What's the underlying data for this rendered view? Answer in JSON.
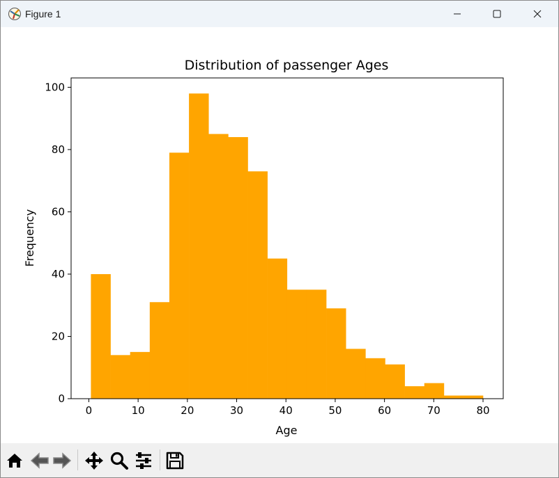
{
  "window": {
    "title": "Figure 1",
    "icons": [
      "figure-app-icon",
      "minimize-icon",
      "maximize-icon",
      "close-icon"
    ]
  },
  "toolbar": {
    "buttons": [
      {
        "name": "home-button",
        "icon": "home-icon"
      },
      {
        "name": "back-button",
        "icon": "back-arrow-icon"
      },
      {
        "name": "forward-button",
        "icon": "forward-arrow-icon"
      },
      {
        "name": "pan-button",
        "icon": "move-icon"
      },
      {
        "name": "zoom-button",
        "icon": "zoom-icon"
      },
      {
        "name": "configure-subplots-button",
        "icon": "sliders-icon"
      },
      {
        "name": "save-button",
        "icon": "save-icon"
      }
    ]
  },
  "colors": {
    "bar": "#ffa500",
    "titlebar": "#eff4f9",
    "toolbar": "#f0f0f0"
  },
  "chart_data": {
    "type": "bar",
    "title": "Distribution of passenger Ages",
    "xlabel": "Age",
    "ylabel": "Frequency",
    "xlim": [
      -3.6,
      84.1
    ],
    "ylim": [
      0,
      103
    ],
    "xticks": [
      0,
      10,
      20,
      30,
      40,
      50,
      60,
      70,
      80
    ],
    "yticks": [
      0,
      20,
      40,
      60,
      80,
      100
    ],
    "grid": false,
    "bin_edges": [
      0.42,
      4.4,
      8.38,
      12.36,
      16.34,
      20.32,
      24.3,
      28.28,
      32.26,
      36.24,
      40.22,
      44.2,
      48.18,
      52.16,
      56.14,
      60.12,
      64.1,
      68.08,
      72.06,
      76.04,
      80.0
    ],
    "values": [
      40,
      14,
      15,
      31,
      79,
      98,
      85,
      84,
      73,
      45,
      35,
      35,
      29,
      16,
      13,
      11,
      4,
      5,
      1,
      1
    ]
  }
}
